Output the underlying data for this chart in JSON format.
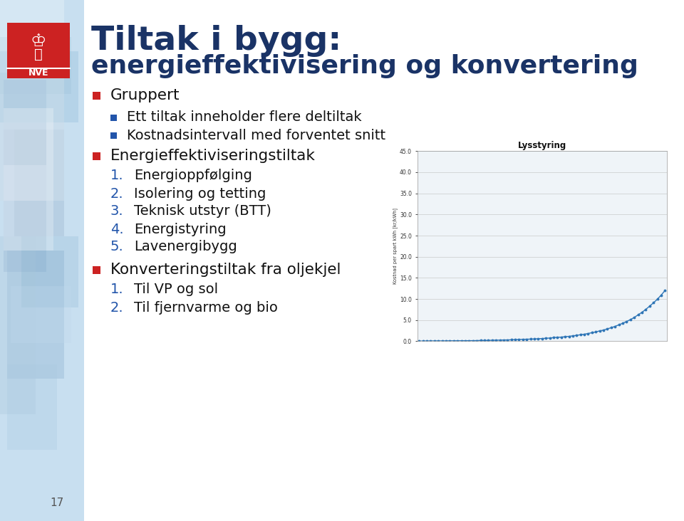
{
  "title_line1": "Tiltak i bygg:",
  "title_line2": "energieffektivisering og konvertering",
  "title_color": "#1a3366",
  "background_color": "#ffffff",
  "bullet_red": "#cc2222",
  "bullet_blue": "#2255aa",
  "num_color": "#2255aa",
  "text_color": "#111111",
  "slide_number": "17",
  "chart_title": "Lysstyring",
  "chart_ylabel": "Kostnad per spart kWh [kr/kWh]",
  "chart_line_color": "#2e75b6",
  "chart_marker_color": "#2e75b6",
  "chart_bg": "#f0f4f8",
  "nve_logo_color": "#cc2222"
}
